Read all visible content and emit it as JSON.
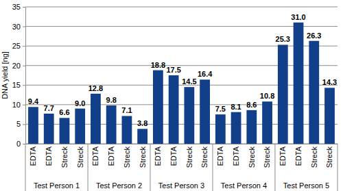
{
  "chart_data": {
    "type": "bar",
    "ylabel": "DNA yield [ng]",
    "categories": [
      "EDTA",
      "EDTA",
      "Streck",
      "Streck",
      "EDTA",
      "EDTA",
      "Streck",
      "Streck",
      "EDTA",
      "EDTA",
      "Streck",
      "Streck",
      "EDTA",
      "EDTA",
      "Streck",
      "Streck",
      "EDTA",
      "EDTA",
      "Streck",
      "Streck"
    ],
    "groups": [
      "Test Person 1",
      "Test Person 2",
      "Test Person 3",
      "Test Person 4",
      "Test Person 5"
    ],
    "values": [
      9.4,
      7.7,
      6.6,
      9.0,
      12.8,
      9.8,
      7.1,
      3.8,
      18.8,
      17.5,
      14.5,
      16.4,
      7.5,
      8.1,
      8.6,
      10.8,
      25.3,
      31.0,
      26.3,
      14.3
    ],
    "value_labels": [
      "9.4",
      "7.7",
      "6.6",
      "9.0",
      "12.8",
      "9.8",
      "7.1",
      "3.8",
      "18.8",
      "17.5",
      "14.5",
      "16.4",
      "7.5",
      "8.1",
      "8.6",
      "10.8",
      "25.3",
      "31.0",
      "26.3",
      "14.3"
    ],
    "color": "#123f8a",
    "ylim": [
      0,
      35
    ],
    "yticks": [
      0,
      5,
      10,
      15,
      20,
      25,
      30,
      35
    ],
    "grid": true,
    "data_labels": true
  }
}
